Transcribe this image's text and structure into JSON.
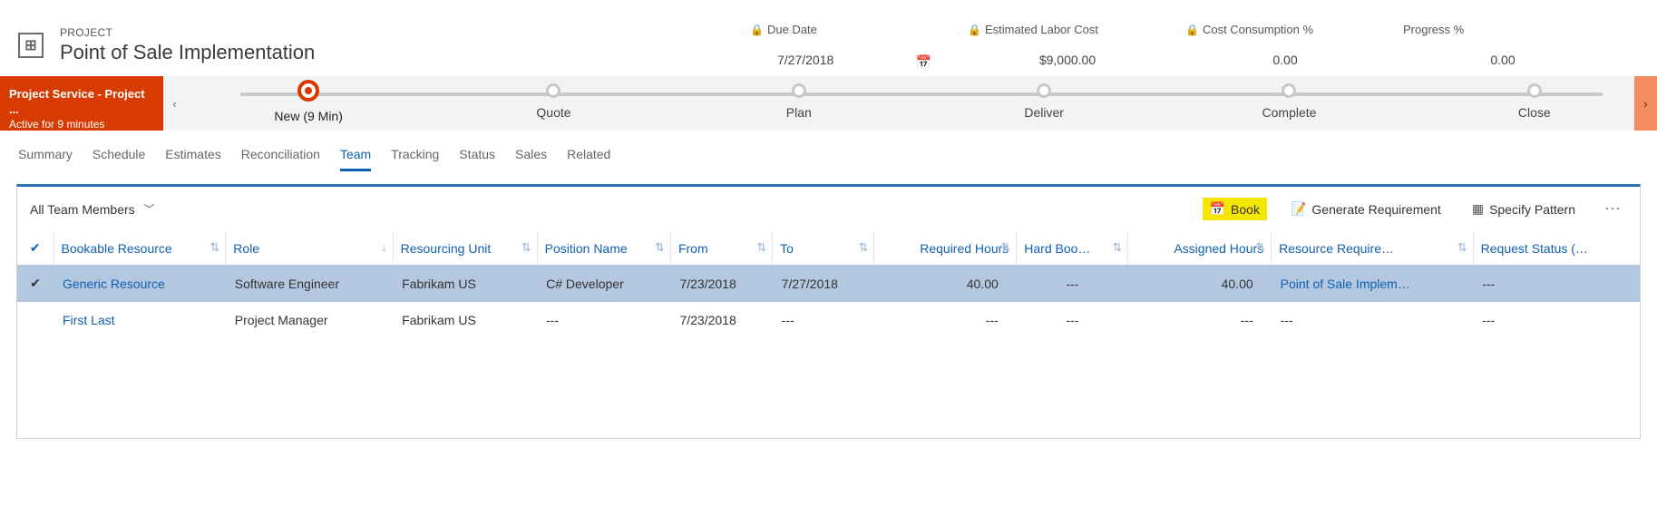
{
  "header": {
    "type_label": "PROJECT",
    "title": "Point of Sale Implementation",
    "fields": [
      {
        "label": "Due Date",
        "value": "7/27/2018",
        "locked": true,
        "calendar": true
      },
      {
        "label": "Estimated Labor Cost",
        "value": "$9,000.00",
        "locked": true
      },
      {
        "label": "Cost Consumption %",
        "value": "0.00",
        "locked": true
      },
      {
        "label": "Progress %",
        "value": "0.00",
        "locked": false
      }
    ]
  },
  "process": {
    "flag_title": "Project Service - Project ...",
    "flag_sub": "Active for 9 minutes",
    "stages": [
      {
        "label": "New  (9 Min)",
        "active": true
      },
      {
        "label": "Quote"
      },
      {
        "label": "Plan"
      },
      {
        "label": "Deliver"
      },
      {
        "label": "Complete"
      },
      {
        "label": "Close"
      }
    ]
  },
  "tabs": [
    {
      "label": "Summary"
    },
    {
      "label": "Schedule"
    },
    {
      "label": "Estimates"
    },
    {
      "label": "Reconciliation"
    },
    {
      "label": "Team",
      "active": true
    },
    {
      "label": "Tracking"
    },
    {
      "label": "Status"
    },
    {
      "label": "Sales"
    },
    {
      "label": "Related"
    }
  ],
  "grid": {
    "view_name": "All Team Members",
    "actions": {
      "book": "Book",
      "generate": "Generate Requirement",
      "pattern": "Specify Pattern"
    },
    "columns": [
      "Bookable Resource",
      "Role",
      "Resourcing Unit",
      "Position Name",
      "From",
      "To",
      "Required Hours",
      "Hard Boo…",
      "Assigned Hours",
      "Resource Require…",
      "Request Status (…"
    ],
    "rows": [
      {
        "selected": true,
        "cells": [
          "Generic Resource",
          "Software Engineer",
          "Fabrikam US",
          "C# Developer",
          "7/23/2018",
          "7/27/2018",
          "40.00",
          "---",
          "40.00",
          "Point of Sale Implem…",
          "---"
        ]
      },
      {
        "selected": false,
        "cells": [
          "First Last",
          "Project Manager",
          "Fabrikam US",
          "---",
          "7/23/2018",
          "---",
          "---",
          "---",
          "---",
          "---",
          "---"
        ]
      }
    ]
  },
  "colors": {
    "accent_blue": "#2b71b8",
    "link_blue": "#1160b0",
    "highlight_yellow": "#f5e600",
    "process_orange": "#d83b01"
  }
}
